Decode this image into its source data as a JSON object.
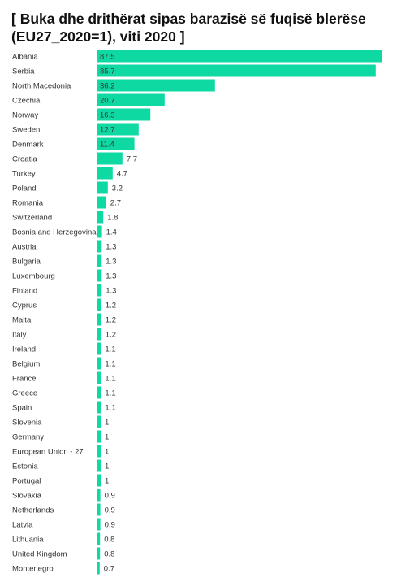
{
  "chart_data": {
    "type": "bar",
    "orientation": "horizontal",
    "title": "[ Buka dhe drithërat sipas barazisë së fuqisë blerëse (EU27_2020=1), viti 2020 ]",
    "xlabel": "",
    "ylabel": "",
    "xlim": [
      0,
      87.5
    ],
    "grid": false,
    "legend": "none",
    "bar_color": "#0fd9a3",
    "categories": [
      "Albania",
      "Serbia",
      "North Macedonia",
      "Czechia",
      "Norway",
      "Sweden",
      "Denmark",
      "Croatia",
      "Turkey",
      "Poland",
      "Romania",
      "Switzerland",
      "Bosnia and Herzegovina",
      "Austria",
      "Bulgaria",
      "Luxembourg",
      "Finland",
      "Cyprus",
      "Malta",
      "Italy",
      "Ireland",
      "Belgium",
      "France",
      "Greece",
      "Spain",
      "Slovenia",
      "Germany",
      "European Union - 27",
      "Estonia",
      "Portugal",
      "Slovakia",
      "Netherlands",
      "Latvia",
      "Lithuania",
      "United Kingdom",
      "Montenegro"
    ],
    "values": [
      87.5,
      85.7,
      36.2,
      20.7,
      16.3,
      12.7,
      11.4,
      7.7,
      4.7,
      3.2,
      2.7,
      1.8,
      1.4,
      1.3,
      1.3,
      1.3,
      1.3,
      1.2,
      1.2,
      1.2,
      1.1,
      1.1,
      1.1,
      1.1,
      1.1,
      1,
      1,
      1,
      1,
      1,
      0.9,
      0.9,
      0.9,
      0.8,
      0.8,
      0.7
    ],
    "value_labels": [
      "87.5",
      "85.7",
      "36.2",
      "20.7",
      "16.3",
      "12.7",
      "11.4",
      "7.7",
      "4.7",
      "3.2",
      "2.7",
      "1.8",
      "1.4",
      "1.3",
      "1.3",
      "1.3",
      "1.3",
      "1.2",
      "1.2",
      "1.2",
      "1.1",
      "1.1",
      "1.1",
      "1.1",
      "1.1",
      "1",
      "1",
      "1",
      "1",
      "1",
      "0.9",
      "0.9",
      "0.9",
      "0.8",
      "0.8",
      "0.7"
    ]
  }
}
